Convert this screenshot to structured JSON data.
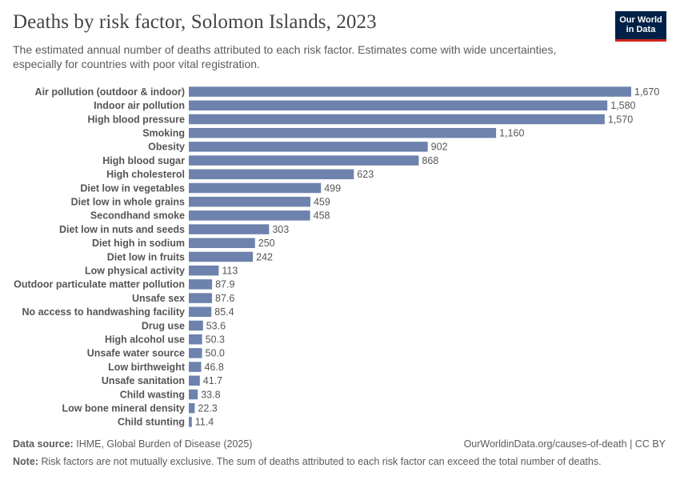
{
  "header": {
    "title": "Deaths by risk factor, Solomon Islands, 2023",
    "subtitle": "The estimated annual number of deaths attributed to each risk factor. Estimates come with wide uncertainties, especially for countries with poor vital registration."
  },
  "logo": {
    "line1": "Our World",
    "line2": "in Data",
    "bg_color": "#002147",
    "accent_color": "#ce261e"
  },
  "footer": {
    "source_label": "Data source:",
    "source_text": "IHME, Global Burden of Disease (2025)",
    "url_text": "OurWorldinData.org/causes-of-death | CC BY",
    "note_label": "Note:",
    "note_text": "Risk factors are not mutually exclusive. The sum of deaths attributed to each risk factor can exceed the total number of deaths."
  },
  "chart_data": {
    "type": "bar",
    "orientation": "horizontal",
    "bar_color": "#6d83ad",
    "categories": [
      "Air pollution (outdoor & indoor)",
      "Indoor air pollution",
      "High blood pressure",
      "Smoking",
      "Obesity",
      "High blood sugar",
      "High cholesterol",
      "Diet low in vegetables",
      "Diet low in whole grains",
      "Secondhand smoke",
      "Diet low in nuts and seeds",
      "Diet high in sodium",
      "Diet low in fruits",
      "Low physical activity",
      "Outdoor particulate matter pollution",
      "Unsafe sex",
      "No access to handwashing facility",
      "Drug use",
      "High alcohol use",
      "Unsafe water source",
      "Low birthweight",
      "Unsafe sanitation",
      "Child wasting",
      "Low bone mineral density",
      "Child stunting"
    ],
    "values": [
      1670,
      1580,
      1570,
      1160,
      902,
      868,
      623,
      499,
      459,
      458,
      303,
      250,
      242,
      113,
      87.9,
      87.6,
      85.4,
      53.6,
      50.3,
      50.0,
      46.8,
      41.7,
      33.8,
      22.3,
      11.4
    ],
    "value_labels": [
      "1,670",
      "1,580",
      "1,570",
      "1,160",
      "902",
      "868",
      "623",
      "499",
      "459",
      "458",
      "303",
      "250",
      "242",
      "113",
      "87.9",
      "87.6",
      "85.4",
      "53.6",
      "50.3",
      "50.0",
      "46.8",
      "41.7",
      "33.8",
      "22.3",
      "11.4"
    ],
    "xlim": [
      0,
      1670
    ],
    "grid": false,
    "legend": "none"
  }
}
